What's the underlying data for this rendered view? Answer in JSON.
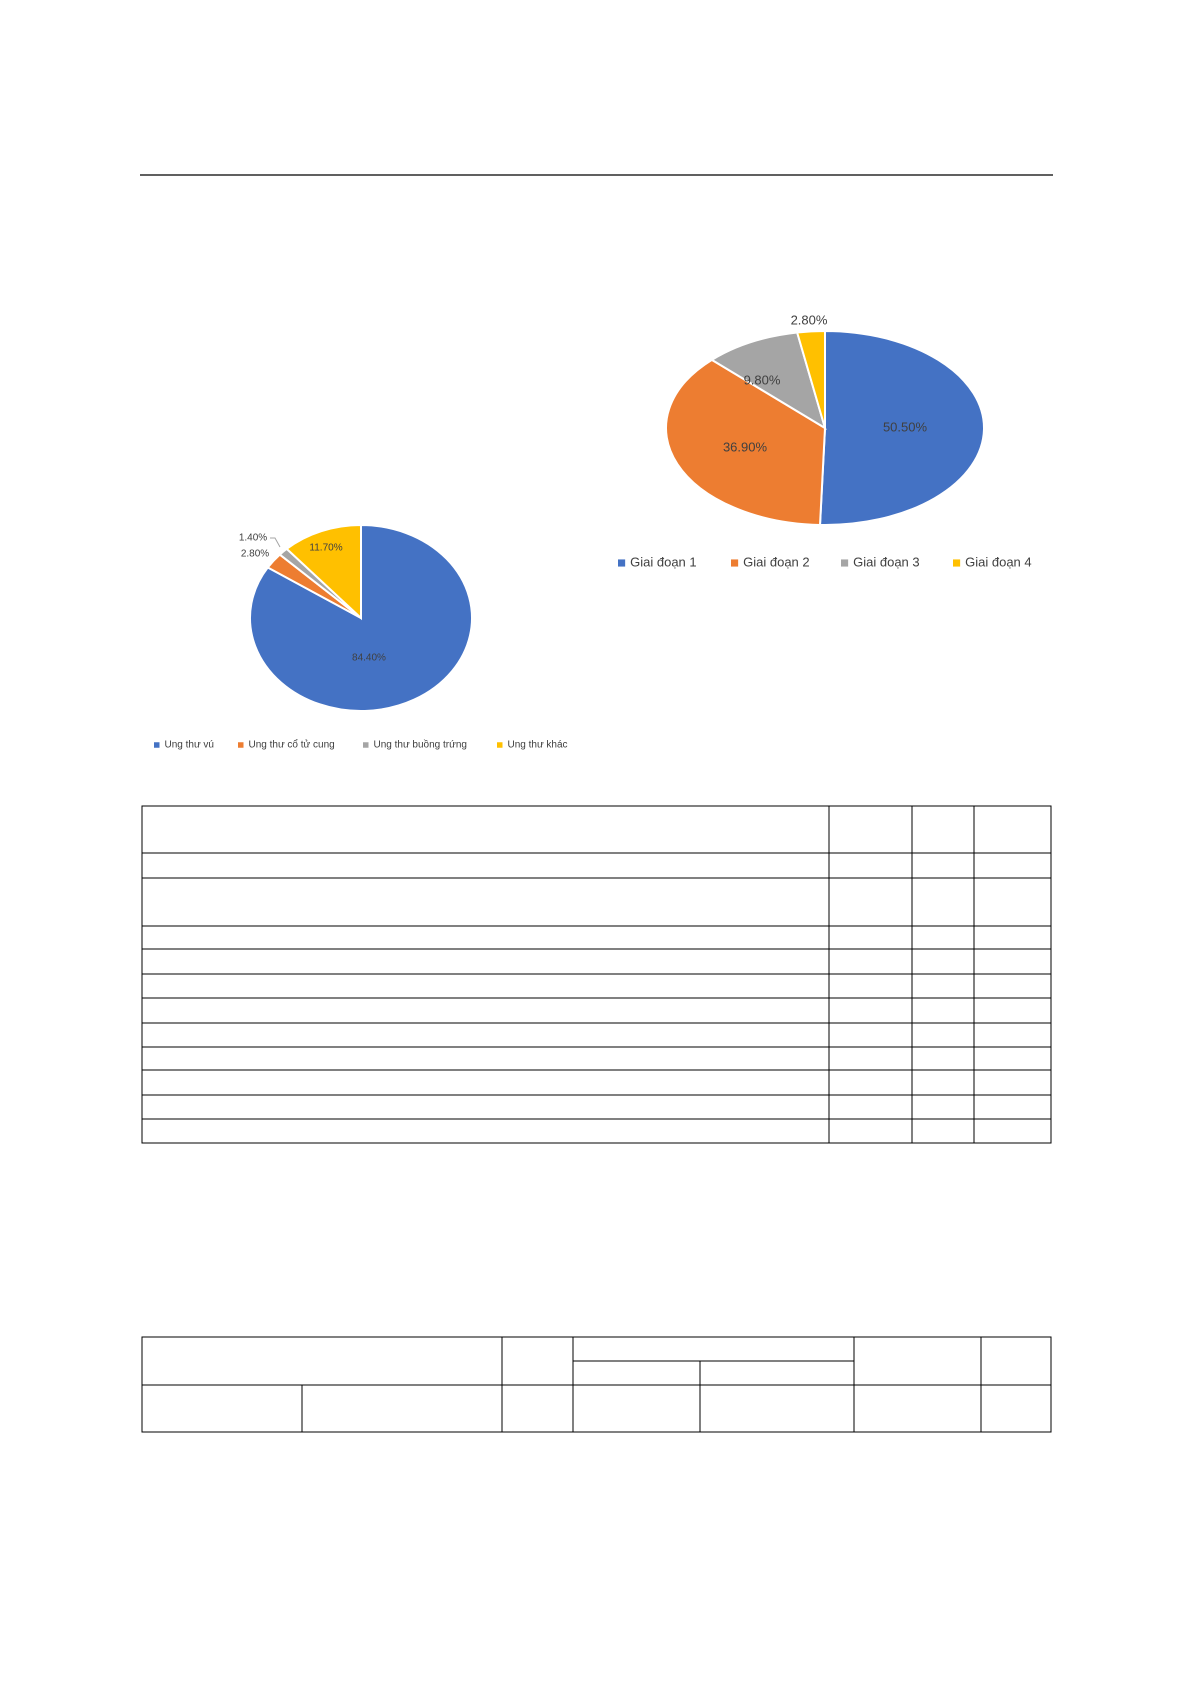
{
  "chart_data": [
    {
      "type": "pie",
      "categories": [
        "Ung thư vú",
        "Ung thư cổ tử cung",
        "Ung thư buồng trứng",
        "Ung thư khác"
      ],
      "values": [
        84.4,
        2.8,
        1.4,
        11.7
      ],
      "value_labels": [
        "84.40%",
        "2.80%",
        "1.40%",
        "11.70%"
      ],
      "colors": [
        "#4472c4",
        "#ed7d31",
        "#a5a5a5",
        "#ffc000"
      ],
      "legend": "bottom"
    },
    {
      "type": "pie",
      "categories": [
        "Giai đoạn 1",
        "Giai đoạn 2",
        "Giai đoạn 3",
        "Giai đoạn 4"
      ],
      "values": [
        50.5,
        36.9,
        9.8,
        2.8
      ],
      "value_labels": [
        "50.50%",
        "36.90%",
        "9.80%",
        "2.80%"
      ],
      "colors": [
        "#4472c4",
        "#ed7d31",
        "#a5a5a5",
        "#ffc000"
      ],
      "legend": "bottom"
    }
  ]
}
